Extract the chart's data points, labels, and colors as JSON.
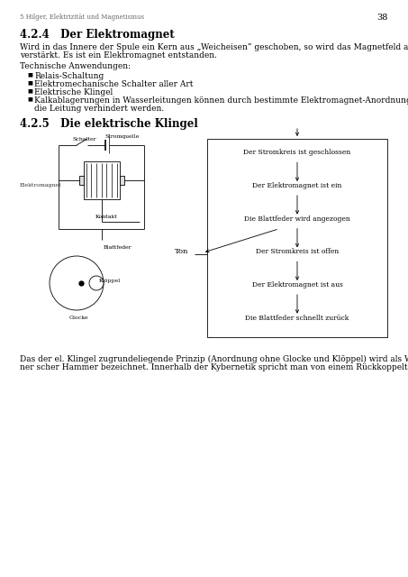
{
  "page_num": "38",
  "header_left": "5 Hilger, Elektrizität und Magnetismus",
  "section_title": "4.2.4   Der Elektromagnet",
  "body_line1": "Wird in das Innere der Spule ein Kern aus „Weicheisen“ geschoben, so wird das Magnetfeld abermals",
  "body_line2": "verstärkt. Es ist ein Elektromagnet entstanden.",
  "tech_header": "Technische Anwendungen:",
  "bullets": [
    "Relais-Schaltung",
    "Elektromechanische Schalter aller Art",
    "Elektrische Klingel",
    "Kalkablagerungen in Wasserleitungen können durch bestimmte Elektromagnet-Anordnungen um",
    "die Leitung verhindert werden."
  ],
  "section2_title": "4.2.5   Die elektrische Klingel",
  "flow_steps": [
    "Der Stromkreis ist geschlossen",
    "Der Elektromagnet ist ein",
    "Die Blattfeder wird angezogen",
    "Der Stromkreis ist offen",
    "Der Elektromagnet ist aus",
    "Die Blattfeder schnellt zurück"
  ],
  "flow_label": "Ton",
  "footer_line1": "Das der el. Klingel zugrundeliegende Prinzip (Anordnung ohne Glocke und Klöppel) wird als Wag-",
  "footer_line2": "ner scher Hammer bezeichnet. Innerhalb der Kybernetik spricht man von einem Rückkoppelten System.",
  "bg_color": "#ffffff",
  "text_color": "#000000"
}
